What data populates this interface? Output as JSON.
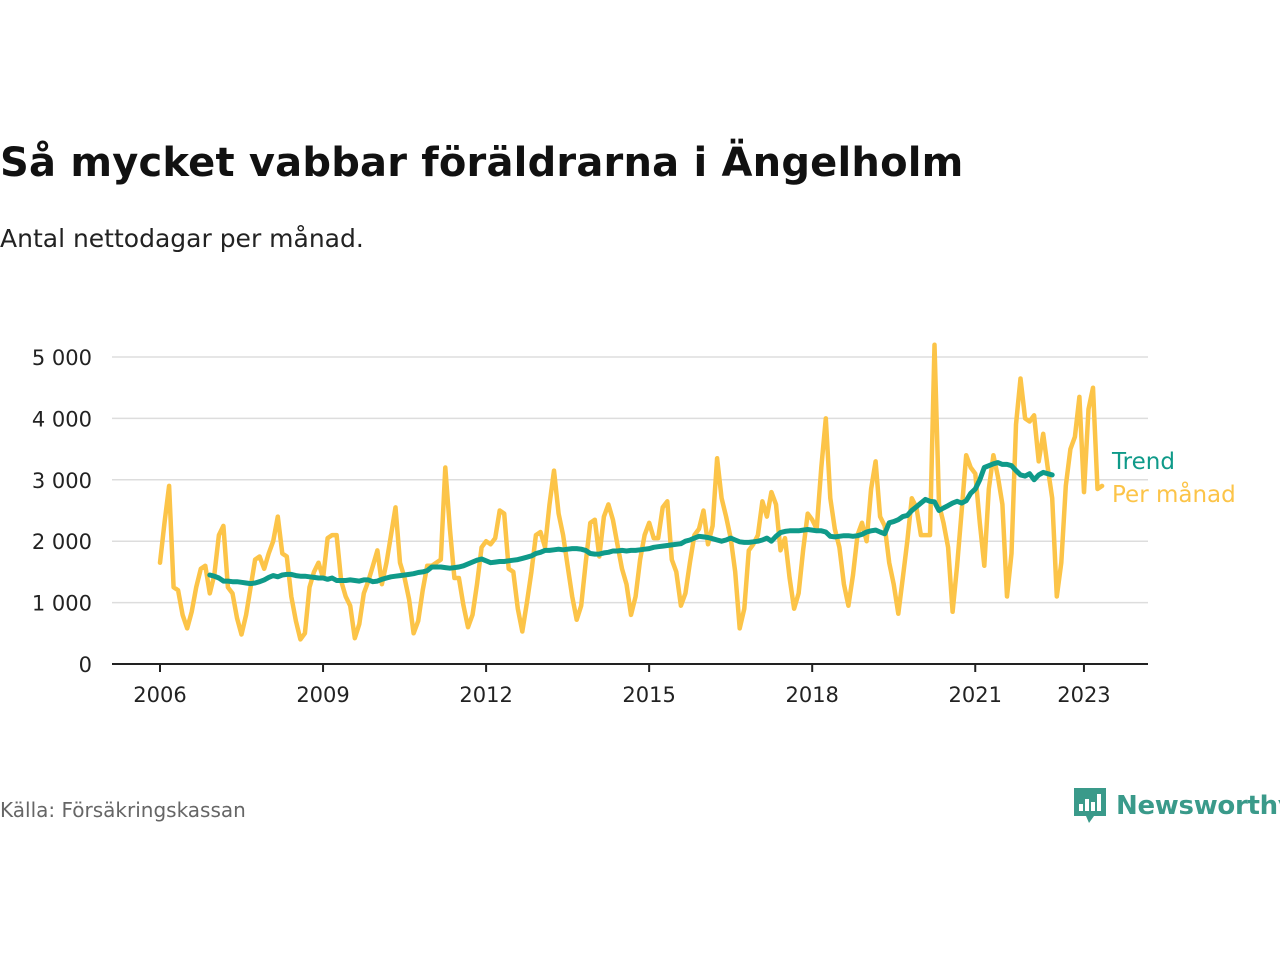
{
  "title": "Så mycket vabbar föräldrarna i Ängelholm",
  "subtitle": "Antal nettodagar per månad.",
  "source": "Källa: Försäkringskassan",
  "brand": {
    "name": "Newsworthy",
    "icon": "newsworthy-logo-icon",
    "color": "#3a9a8a"
  },
  "chart_data": {
    "type": "line",
    "x_ticks": [
      "2006",
      "2009",
      "2012",
      "2015",
      "2018",
      "2021",
      "2023"
    ],
    "y_ticks": [
      "0",
      "1 000",
      "2 000",
      "3 000",
      "4 000",
      "5 000"
    ],
    "ylim": [
      0,
      5000
    ],
    "xlim": [
      "2006-01",
      "2023-12"
    ],
    "grid": true,
    "legend": "right, at line ends",
    "series": [
      {
        "name": "Per månad",
        "color": "#fcc448",
        "start": "2006-01",
        "values": [
          1650,
          2300,
          2900,
          1250,
          1200,
          800,
          580,
          850,
          1250,
          1550,
          1600,
          1150,
          1450,
          2100,
          2250,
          1250,
          1150,
          750,
          480,
          800,
          1250,
          1700,
          1750,
          1550,
          1800,
          2000,
          2400,
          1800,
          1750,
          1100,
          700,
          400,
          500,
          1250,
          1500,
          1650,
          1400,
          2050,
          2100,
          2100,
          1350,
          1100,
          950,
          420,
          650,
          1150,
          1350,
          1600,
          1850,
          1300,
          1650,
          2100,
          2550,
          1650,
          1400,
          1050,
          500,
          700,
          1200,
          1600,
          1600,
          1650,
          1700,
          3200,
          2200,
          1400,
          1400,
          950,
          600,
          800,
          1300,
          1900,
          2000,
          1950,
          2050,
          2500,
          2450,
          1550,
          1500,
          900,
          530,
          1000,
          1500,
          2100,
          2150,
          1900,
          2600,
          3150,
          2450,
          2100,
          1600,
          1100,
          720,
          950,
          1650,
          2300,
          2350,
          1750,
          2400,
          2600,
          2350,
          1950,
          1550,
          1300,
          800,
          1100,
          1700,
          2100,
          2300,
          2050,
          2050,
          2550,
          2650,
          1700,
          1500,
          950,
          1150,
          1650,
          2100,
          2200,
          2500,
          1950,
          2250,
          3350,
          2700,
          2400,
          2050,
          1500,
          580,
          900,
          1850,
          1950,
          2100,
          2650,
          2400,
          2800,
          2600,
          1850,
          2050,
          1400,
          900,
          1150,
          1850,
          2450,
          2350,
          2200,
          3200,
          4000,
          2700,
          2200,
          1900,
          1300,
          950,
          1450,
          2100,
          2300,
          2000,
          2850,
          3300,
          2400,
          2250,
          1650,
          1300,
          820,
          1400,
          2000,
          2700,
          2550,
          2100,
          2100,
          2100,
          5200,
          2600,
          2300,
          1900,
          850,
          1600,
          2500,
          3400,
          3200,
          3100,
          2300,
          1600,
          2850,
          3400,
          3050,
          2600,
          1100,
          1800,
          3900,
          4650,
          4000,
          3950,
          4050,
          3300,
          3750,
          3200,
          2700,
          1100,
          1650,
          2900,
          3500,
          3700,
          4350,
          2800,
          4150,
          4500,
          2850,
          2900
        ]
      },
      {
        "name": "Trend",
        "color": "#0f9a89",
        "start": "2006-12",
        "values": [
          1450,
          1430,
          1400,
          1350,
          1350,
          1340,
          1340,
          1330,
          1320,
          1310,
          1320,
          1340,
          1370,
          1410,
          1440,
          1420,
          1450,
          1460,
          1460,
          1440,
          1430,
          1430,
          1420,
          1410,
          1400,
          1400,
          1380,
          1400,
          1360,
          1360,
          1360,
          1370,
          1360,
          1350,
          1370,
          1370,
          1340,
          1350,
          1380,
          1400,
          1420,
          1430,
          1440,
          1450,
          1460,
          1470,
          1490,
          1500,
          1520,
          1580,
          1580,
          1580,
          1570,
          1560,
          1570,
          1580,
          1600,
          1630,
          1660,
          1690,
          1710,
          1680,
          1650,
          1660,
          1670,
          1670,
          1680,
          1690,
          1700,
          1720,
          1740,
          1760,
          1800,
          1820,
          1850,
          1850,
          1860,
          1870,
          1860,
          1870,
          1880,
          1880,
          1870,
          1850,
          1800,
          1790,
          1790,
          1810,
          1820,
          1840,
          1840,
          1850,
          1840,
          1850,
          1850,
          1860,
          1870,
          1880,
          1900,
          1910,
          1920,
          1930,
          1940,
          1950,
          1960,
          2000,
          2020,
          2050,
          2080,
          2070,
          2060,
          2040,
          2020,
          2000,
          2020,
          2050,
          2020,
          1990,
          1980,
          1980,
          1990,
          2000,
          2020,
          2050,
          2000,
          2080,
          2140,
          2160,
          2170,
          2170,
          2170,
          2180,
          2190,
          2180,
          2170,
          2170,
          2150,
          2080,
          2070,
          2080,
          2090,
          2090,
          2080,
          2090,
          2110,
          2150,
          2170,
          2180,
          2150,
          2120,
          2300,
          2320,
          2350,
          2400,
          2420,
          2500,
          2560,
          2620,
          2680,
          2650,
          2640,
          2500,
          2540,
          2580,
          2620,
          2650,
          2620,
          2660,
          2780,
          2850,
          3000,
          3200,
          3230,
          3260,
          3280,
          3250,
          3250,
          3230,
          3150,
          3080,
          3060,
          3100,
          3000,
          3080,
          3120,
          3100,
          3080
        ]
      }
    ]
  }
}
